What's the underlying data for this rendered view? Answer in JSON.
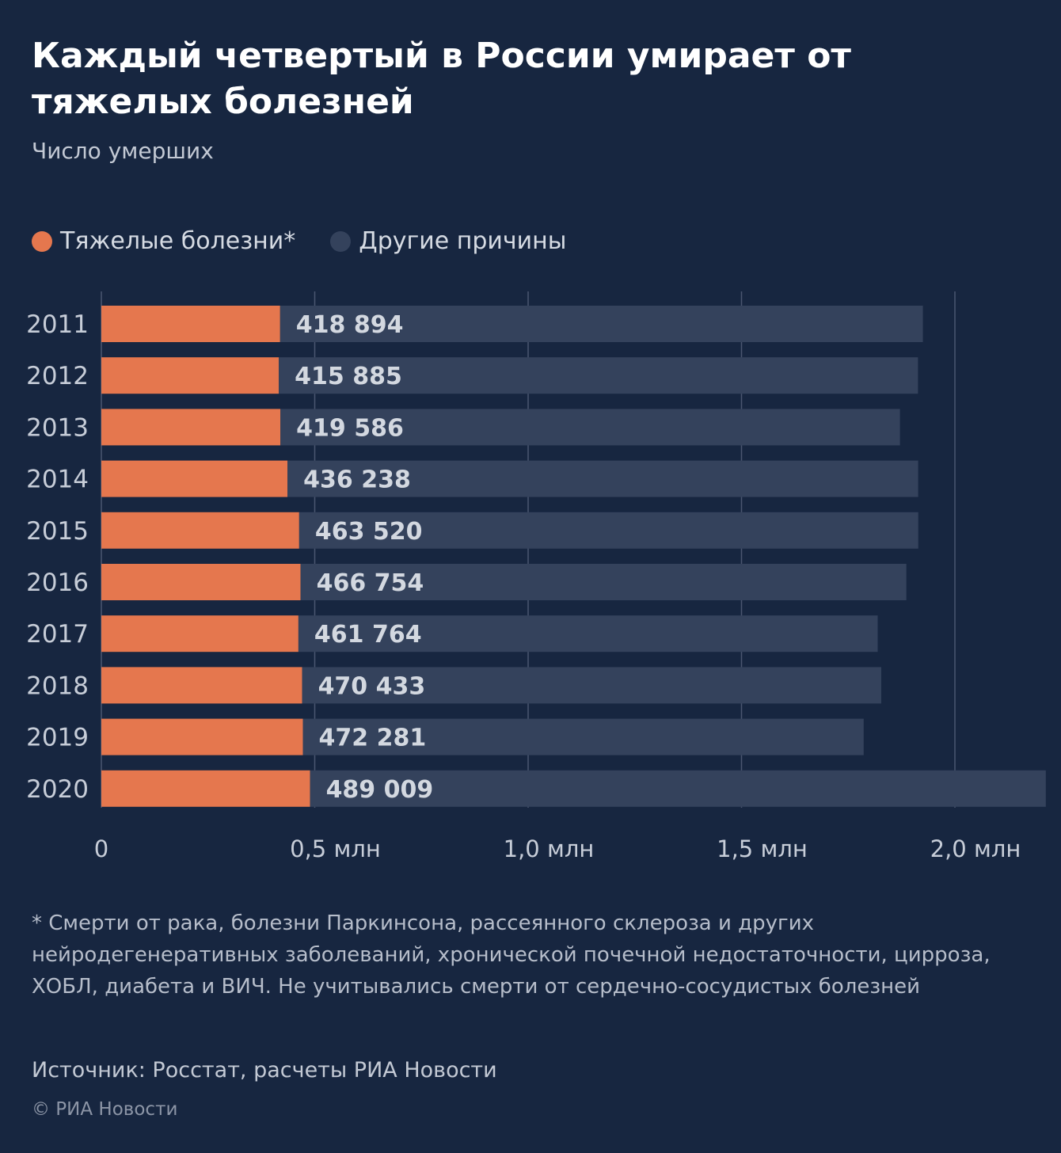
{
  "header": {
    "title": "Каждый четвертый в России умирает от тяжелых болезней",
    "subtitle": "Число умерших"
  },
  "legend": {
    "items": [
      {
        "label": "Тяжелые болезни*",
        "color": "#E5774E"
      },
      {
        "label": "Другие причины",
        "color": "#34425C"
      }
    ]
  },
  "chart_data": {
    "type": "bar",
    "orientation": "horizontal",
    "stacked": true,
    "categories": [
      "2011",
      "2012",
      "2013",
      "2014",
      "2015",
      "2016",
      "2017",
      "2018",
      "2019",
      "2020"
    ],
    "series": [
      {
        "name": "Тяжелые болезни*",
        "color": "#E5774E",
        "values": [
          418894,
          415885,
          419586,
          436238,
          463520,
          466754,
          461764,
          470433,
          472281,
          489009
        ],
        "labels": [
          "418 894",
          "415 885",
          "419 586",
          "436 238",
          "463 520",
          "466 754",
          "461 764",
          "470 433",
          "472 281",
          "489 009"
        ]
      },
      {
        "name": "Другие причины",
        "color": "#34425C",
        "values": [
          1506100,
          1497600,
          1451700,
          1477700,
          1450600,
          1419400,
          1357300,
          1357000,
          1314000,
          1724000
        ]
      }
    ],
    "xlim": [
      0,
      2000000
    ],
    "xticks": [
      0,
      500000,
      1000000,
      1500000,
      2000000
    ],
    "xtick_labels": [
      "0",
      "0,5 млн",
      "1,0 млн",
      "1,5 млн",
      "2,0 млн"
    ],
    "grid": true,
    "legend_position": "top-left"
  },
  "footnote": "* Смерти от рака, болезни Паркинсона, рассеянного склероза и других нейродегенеративных заболеваний, хронической почечной недостаточности, цирроза, ХОБЛ, диабета и ВИЧ. Не учитывались смерти от сердечно-сосудистых болезней",
  "source": "Источник: Росстат, расчеты РИА Новости",
  "copyright": "© РИА Новости",
  "colors": {
    "background": "#172640",
    "grid": "#4A5670",
    "label_text": "#C7CDD8",
    "value_text": "#D3D8E0"
  }
}
